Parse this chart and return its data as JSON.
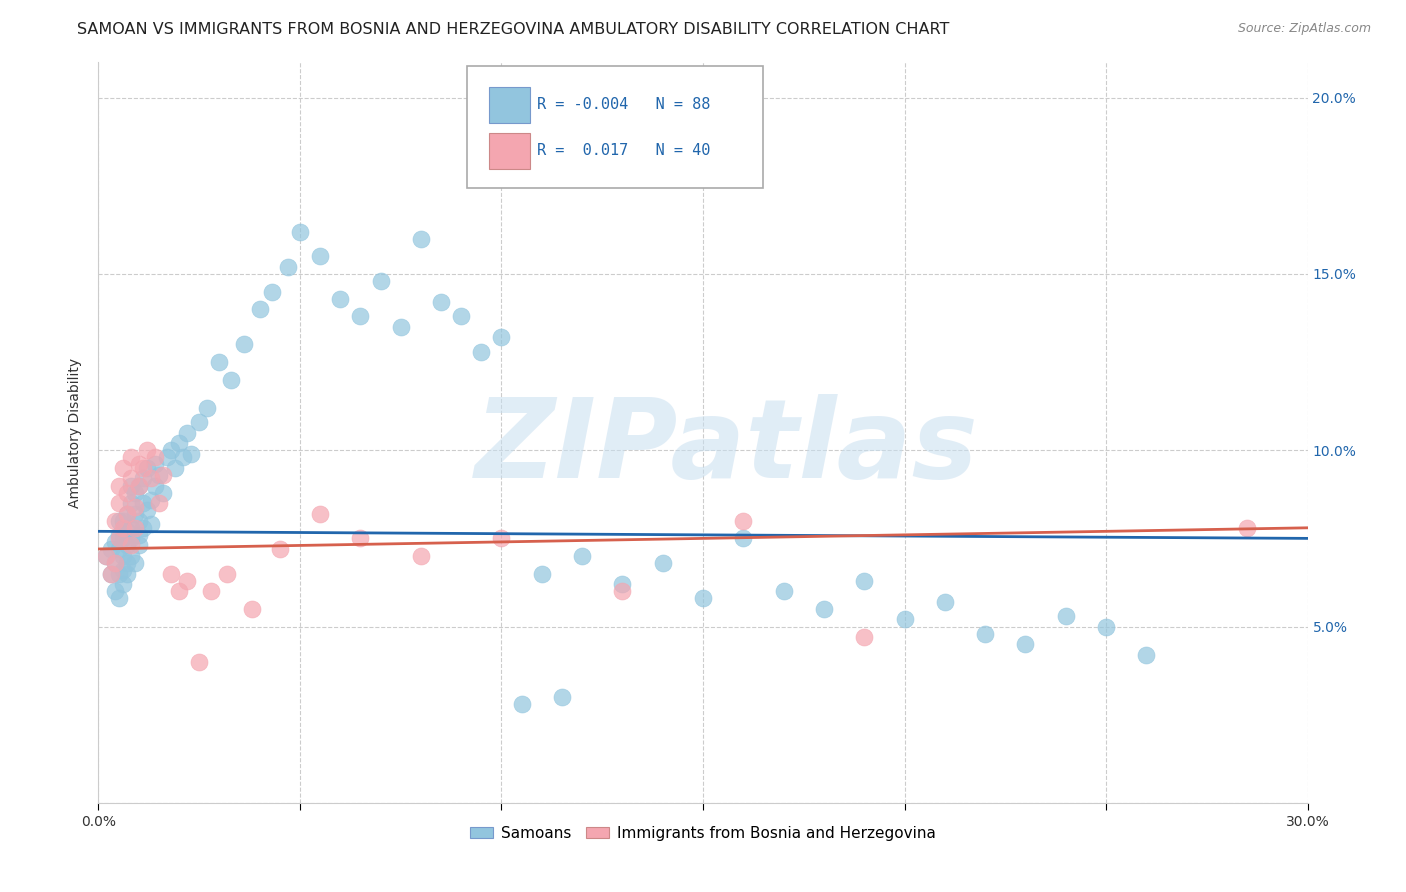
{
  "title": "SAMOAN VS IMMIGRANTS FROM BOSNIA AND HERZEGOVINA AMBULATORY DISABILITY CORRELATION CHART",
  "source": "Source: ZipAtlas.com",
  "ylabel": "Ambulatory Disability",
  "xlim": [
    0.0,
    0.3
  ],
  "ylim": [
    0.0,
    0.21
  ],
  "xticks": [
    0.0,
    0.05,
    0.1,
    0.15,
    0.2,
    0.25,
    0.3
  ],
  "xtick_labels_show": [
    "0.0%",
    "",
    "",
    "",
    "",
    "",
    "30.0%"
  ],
  "yticks": [
    0.0,
    0.05,
    0.1,
    0.15,
    0.2
  ],
  "ytick_labels_right": [
    "",
    "5.0%",
    "10.0%",
    "15.0%",
    "20.0%"
  ],
  "blue_color": "#92c5de",
  "pink_color": "#f4a6b0",
  "blue_line_color": "#2166ac",
  "pink_line_color": "#d6604d",
  "blue_R": -0.004,
  "blue_N": 88,
  "pink_R": 0.017,
  "pink_N": 40,
  "blue_line_y_start": 0.077,
  "blue_line_y_end": 0.075,
  "pink_line_y_start": 0.072,
  "pink_line_y_end": 0.078,
  "watermark": "ZIPatlas",
  "background_color": "#ffffff",
  "grid_color": "#cccccc",
  "title_fontsize": 11.5,
  "axis_label_fontsize": 10,
  "tick_fontsize": 10,
  "source_fontsize": 9,
  "legend_label1": "Samoans",
  "legend_label2": "Immigrants from Bosnia and Herzegovina",
  "blue_scatter_x": [
    0.002,
    0.003,
    0.003,
    0.004,
    0.004,
    0.004,
    0.005,
    0.005,
    0.005,
    0.005,
    0.005,
    0.006,
    0.006,
    0.006,
    0.006,
    0.006,
    0.007,
    0.007,
    0.007,
    0.007,
    0.007,
    0.008,
    0.008,
    0.008,
    0.008,
    0.008,
    0.009,
    0.009,
    0.009,
    0.01,
    0.01,
    0.01,
    0.01,
    0.011,
    0.011,
    0.011,
    0.012,
    0.012,
    0.013,
    0.013,
    0.014,
    0.014,
    0.015,
    0.016,
    0.017,
    0.018,
    0.019,
    0.02,
    0.021,
    0.022,
    0.023,
    0.025,
    0.027,
    0.03,
    0.033,
    0.036,
    0.04,
    0.043,
    0.047,
    0.05,
    0.055,
    0.06,
    0.065,
    0.07,
    0.075,
    0.08,
    0.085,
    0.09,
    0.095,
    0.1,
    0.11,
    0.12,
    0.13,
    0.14,
    0.15,
    0.16,
    0.17,
    0.18,
    0.19,
    0.2,
    0.21,
    0.22,
    0.23,
    0.24,
    0.25,
    0.26,
    0.115,
    0.105
  ],
  "blue_scatter_y": [
    0.07,
    0.065,
    0.072,
    0.068,
    0.074,
    0.06,
    0.076,
    0.065,
    0.072,
    0.08,
    0.058,
    0.075,
    0.07,
    0.066,
    0.08,
    0.062,
    0.068,
    0.077,
    0.073,
    0.082,
    0.065,
    0.075,
    0.085,
    0.07,
    0.09,
    0.078,
    0.068,
    0.082,
    0.088,
    0.073,
    0.08,
    0.09,
    0.076,
    0.085,
    0.092,
    0.078,
    0.083,
    0.095,
    0.086,
    0.079,
    0.09,
    0.096,
    0.093,
    0.088,
    0.098,
    0.1,
    0.095,
    0.102,
    0.098,
    0.105,
    0.099,
    0.108,
    0.112,
    0.125,
    0.12,
    0.13,
    0.14,
    0.145,
    0.152,
    0.162,
    0.155,
    0.143,
    0.138,
    0.148,
    0.135,
    0.16,
    0.142,
    0.138,
    0.128,
    0.132,
    0.065,
    0.07,
    0.062,
    0.068,
    0.058,
    0.075,
    0.06,
    0.055,
    0.063,
    0.052,
    0.057,
    0.048,
    0.045,
    0.053,
    0.05,
    0.042,
    0.03,
    0.028
  ],
  "pink_scatter_x": [
    0.002,
    0.003,
    0.004,
    0.004,
    0.005,
    0.005,
    0.005,
    0.006,
    0.006,
    0.007,
    0.007,
    0.008,
    0.008,
    0.008,
    0.009,
    0.009,
    0.01,
    0.01,
    0.011,
    0.012,
    0.013,
    0.014,
    0.015,
    0.016,
    0.018,
    0.02,
    0.022,
    0.025,
    0.028,
    0.032,
    0.038,
    0.045,
    0.055,
    0.065,
    0.08,
    0.1,
    0.13,
    0.16,
    0.19,
    0.285
  ],
  "pink_scatter_y": [
    0.07,
    0.065,
    0.08,
    0.068,
    0.075,
    0.09,
    0.085,
    0.078,
    0.095,
    0.082,
    0.088,
    0.073,
    0.092,
    0.098,
    0.078,
    0.084,
    0.09,
    0.096,
    0.095,
    0.1,
    0.092,
    0.098,
    0.085,
    0.093,
    0.065,
    0.06,
    0.063,
    0.04,
    0.06,
    0.065,
    0.055,
    0.072,
    0.082,
    0.075,
    0.07,
    0.075,
    0.06,
    0.08,
    0.047,
    0.078
  ]
}
